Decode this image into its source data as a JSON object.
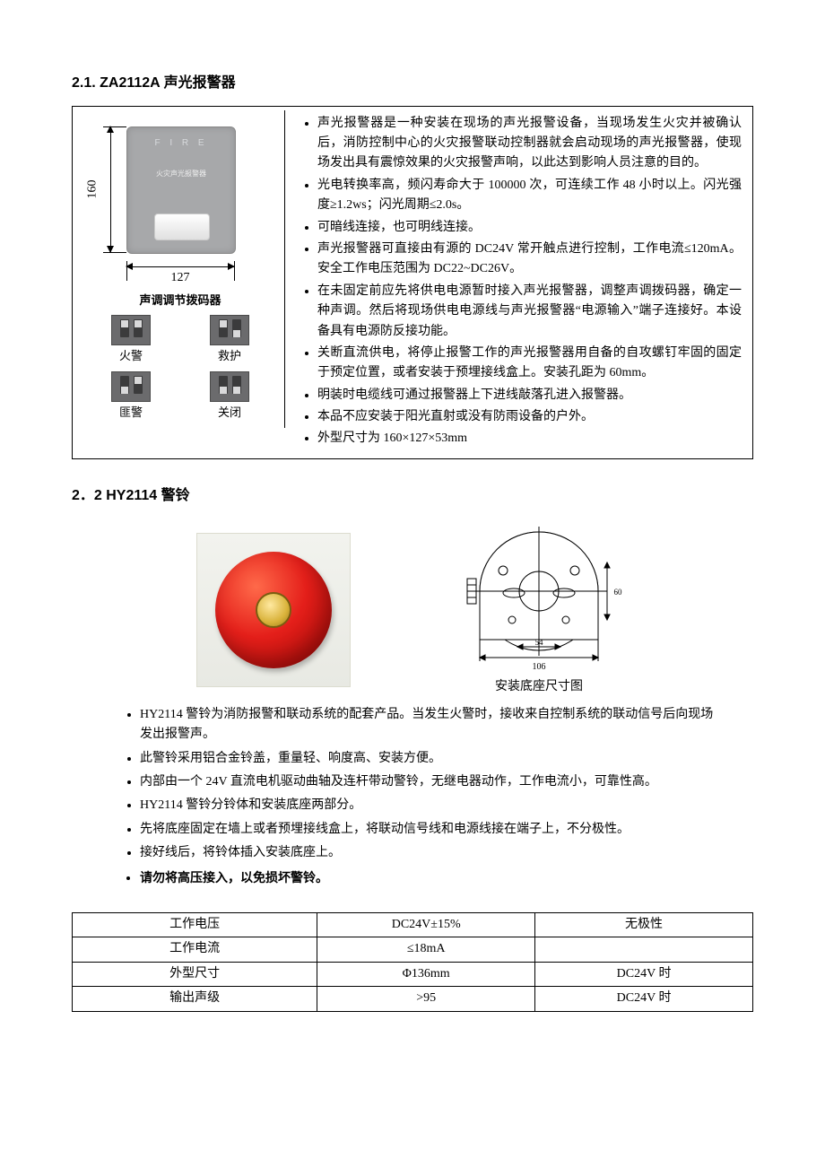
{
  "section1": {
    "heading": "2.1.  ZA2112A 声光报警器",
    "figure": {
      "height_label": "160",
      "width_label": "127",
      "device_fire_text": "F I R E",
      "device_cn_text": "火灾声光报警器"
    },
    "switch_title": "声调调节拨码器",
    "switches": [
      {
        "label": "火警",
        "pos": [
          "up",
          "up"
        ]
      },
      {
        "label": "救护",
        "pos": [
          "up",
          "down"
        ]
      },
      {
        "label": "匪警",
        "pos": [
          "down",
          "up"
        ]
      },
      {
        "label": "关闭",
        "pos": [
          "down",
          "down"
        ]
      }
    ],
    "bullets": [
      "声光报警器是一种安装在现场的声光报警设备，当现场发生火灾并被确认后，消防控制中心的火灾报警联动控制器就会启动现场的声光报警器，使现场发出具有震惊效果的火灾报警声响，以此达到影响人员注意的目的。",
      "光电转换率高，频闪寿命大于 100000 次，可连续工作 48 小时以上。闪光强度≥1.2ws；闪光周期≤2.0s。",
      "可暗线连接，也可明线连接。",
      "声光报警器可直接由有源的 DC24V 常开触点进行控制，工作电流≤120mA。安全工作电压范围为 DC22~DC26V。",
      "在未固定前应先将供电电源暂时接入声光报警器，调整声调拨码器，确定一种声调。然后将现场供电电源线与声光报警器“电源输入”端子连接好。本设备具有电源防反接功能。",
      "关断直流供电，将停止报警工作的声光报警器用自备的自攻螺钉牢固的固定于预定位置，或者安装于预埋接线盒上。安装孔距为 60mm。",
      "明装时电缆线可通过报警器上下进线敲落孔进入报警器。",
      "本品不应安装于阳光直射或没有防雨设备的户外。",
      "外型尺寸为 160×127×53mm"
    ]
  },
  "section2": {
    "heading": "2．2  HY2114 警铃",
    "base_caption": "安装底座尺寸图",
    "bullets": [
      "HY2114 警铃为消防报警和联动系统的配套产品。当发生火警时，接收来自控制系统的联动信号后向现场发出报警声。",
      "此警铃采用铝合金铃盖，重量轻、响度高、安装方便。",
      "内部由一个 24V 直流电机驱动曲轴及连杆带动警铃，无继电器动作，工作电流小，可靠性高。",
      "HY2114 警铃分铃体和安装底座两部分。",
      "先将底座固定在墙上或者预埋接线盒上，将联动信号线和电源线接在端子上，不分极性。",
      "接好线后，将铃体插入安装底座上。"
    ],
    "bullet_bold": "请勿将高压接入，以免损坏警铃。",
    "table": {
      "rows": [
        [
          "工作电压",
          "DC24V±15%",
          "无极性"
        ],
        [
          "工作电流",
          "≤18mA",
          ""
        ],
        [
          "外型尺寸",
          "Φ136mm",
          "DC24V 时"
        ],
        [
          "输出声级",
          ">95",
          "DC24V 时"
        ]
      ],
      "col_widths": [
        "36%",
        "32%",
        "32%"
      ]
    },
    "drawing_labels": {
      "w": "106",
      "inner": "84"
    }
  }
}
